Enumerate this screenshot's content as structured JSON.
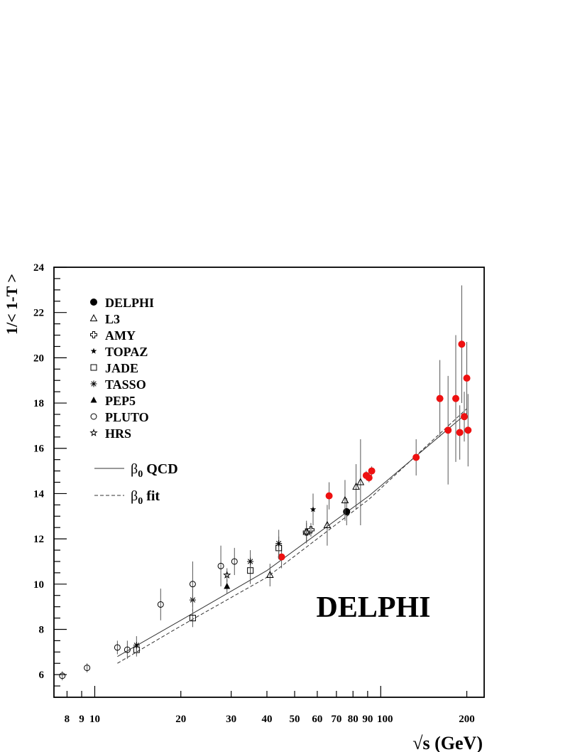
{
  "chart_data": {
    "type": "scatter",
    "title": "DELPHI",
    "xlabel": "√s (GeV)",
    "ylabel": "1/< 1-T >",
    "x_scale": "log",
    "xlim": [
      7.2,
      230
    ],
    "ylim": [
      5,
      24
    ],
    "x_ticks": [
      8,
      9,
      10,
      20,
      30,
      40,
      50,
      60,
      70,
      80,
      90,
      100,
      200
    ],
    "x_tick_labels": [
      "8",
      "9",
      "10",
      "20",
      "30",
      "40",
      "50",
      "60",
      "70",
      "80",
      "90",
      "100",
      "200"
    ],
    "y_ticks": [
      6,
      8,
      10,
      12,
      14,
      16,
      18,
      20,
      22,
      24
    ],
    "grid": false,
    "legend_position": "top-left",
    "series": [
      {
        "name": "DELPHI",
        "marker": "filled-circle",
        "color": "#000000",
        "points": [
          [
            76.0,
            13.2,
            0.6
          ]
        ]
      },
      {
        "name": "",
        "marker": "filled-circle",
        "color": "#ee1111",
        "points": [
          [
            45.0,
            11.2,
            0.5
          ],
          [
            66.0,
            13.9,
            0.6
          ],
          [
            89.0,
            14.8,
            0.2
          ],
          [
            91.0,
            14.7,
            0.2
          ],
          [
            93.0,
            15.0,
            0.2
          ],
          [
            133.0,
            15.6,
            0.8
          ],
          [
            161.0,
            18.2,
            1.7
          ],
          [
            172.0,
            16.8,
            2.4
          ],
          [
            183.0,
            18.2,
            2.8
          ],
          [
            189.0,
            16.7,
            1.2
          ],
          [
            192.0,
            20.6,
            2.6
          ],
          [
            196.0,
            17.4,
            1.1
          ],
          [
            200.0,
            19.1,
            1.6
          ],
          [
            202.0,
            16.8,
            1.6
          ]
        ]
      },
      {
        "name": "L3",
        "marker": "open-triangle",
        "color": "#000000",
        "points": [
          [
            41.0,
            10.4,
            0.5
          ],
          [
            55.0,
            12.3,
            0.5
          ],
          [
            65.0,
            12.6,
            0.9
          ],
          [
            75.0,
            13.7,
            0.9
          ],
          [
            82.0,
            14.3,
            1.0
          ],
          [
            85.0,
            14.5,
            1.9
          ]
        ]
      },
      {
        "name": "AMY",
        "marker": "open-cross",
        "color": "#000000",
        "points": [
          [
            55.0,
            12.3,
            0.4
          ],
          [
            57.0,
            12.4,
            0.3
          ]
        ]
      },
      {
        "name": "TOPAZ",
        "marker": "filled-star",
        "color": "#000000",
        "points": [
          [
            58.0,
            13.3,
            0.7
          ]
        ]
      },
      {
        "name": "JADE",
        "marker": "open-square",
        "color": "#000000",
        "points": [
          [
            14.0,
            7.1,
            0.3
          ],
          [
            22.0,
            8.5,
            0.4
          ],
          [
            35.0,
            10.6,
            0.6
          ],
          [
            44.0,
            11.6,
            0.5
          ]
        ]
      },
      {
        "name": "TASSO",
        "marker": "asterisk",
        "color": "#000000",
        "points": [
          [
            14.0,
            7.3,
            0.4
          ],
          [
            22.0,
            9.3,
            0.5
          ],
          [
            35.0,
            11.0,
            0.5
          ],
          [
            44.0,
            11.8,
            0.6
          ]
        ]
      },
      {
        "name": "PEP5",
        "marker": "filled-triangle",
        "color": "#000000",
        "points": [
          [
            29.0,
            9.9,
            0.3
          ]
        ]
      },
      {
        "name": "PLUTO",
        "marker": "open-circle",
        "color": "#000000",
        "points": [
          [
            7.7,
            5.95,
            0.2
          ],
          [
            9.4,
            6.3,
            0.2
          ],
          [
            12.0,
            7.2,
            0.3
          ],
          [
            13.0,
            7.1,
            0.4
          ],
          [
            17.0,
            9.1,
            0.7
          ],
          [
            22.0,
            10.0,
            1.0
          ],
          [
            27.6,
            10.8,
            0.9
          ],
          [
            30.8,
            11.0,
            0.6
          ]
        ]
      },
      {
        "name": "HRS",
        "marker": "open-star",
        "color": "#000000",
        "points": [
          [
            29.0,
            10.4,
            0.3
          ]
        ]
      }
    ],
    "curves": [
      {
        "name": "β0 QCD",
        "style": "solid",
        "x": [
          12,
          20,
          40,
          91,
          200
        ],
        "y": [
          6.8,
          8.4,
          10.6,
          13.9,
          17.55
        ]
      },
      {
        "name": "β0 fit",
        "style": "dashed",
        "x": [
          12,
          20,
          40,
          91,
          200
        ],
        "y": [
          6.5,
          8.15,
          10.3,
          13.75,
          17.75
        ]
      }
    ],
    "legend": {
      "entries": [
        "DELPHI",
        "L3",
        "AMY",
        "TOPAZ",
        "JADE",
        "TASSO",
        "PEP5",
        "PLUTO",
        "HRS"
      ],
      "curve_entries": [
        {
          "symbol": "β",
          "sub": "0",
          "text": " QCD"
        },
        {
          "symbol": "β",
          "sub": "0",
          "text": " fit"
        }
      ]
    },
    "annotation": "DELPHI"
  }
}
